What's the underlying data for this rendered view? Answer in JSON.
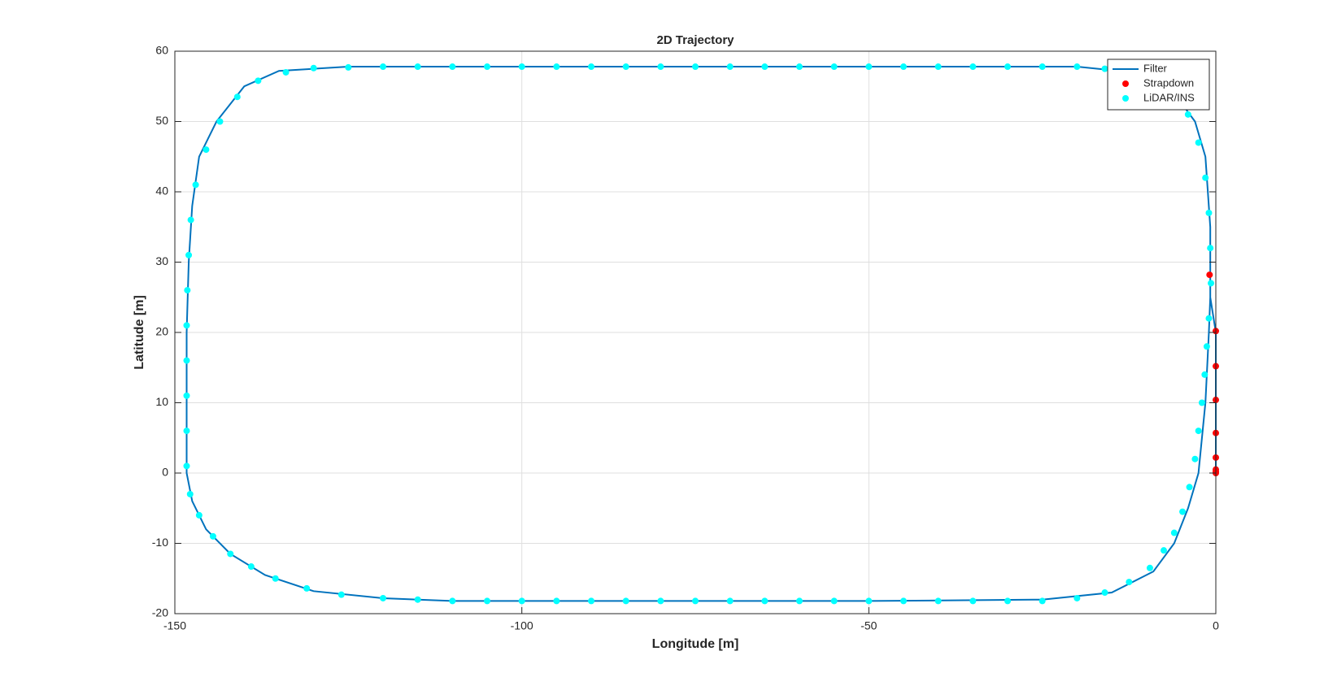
{
  "chart_data": {
    "type": "line",
    "title": "2D Trajectory",
    "x_label": "Longitude [m]",
    "y_label": "Latitude [m]",
    "xlim": [
      -150,
      0
    ],
    "ylim": [
      -20,
      60
    ],
    "xticks": [
      -150,
      -100,
      -50,
      0
    ],
    "yticks": [
      -20,
      -10,
      0,
      10,
      20,
      30,
      40,
      50,
      60
    ],
    "grid": true,
    "legend": "top-right",
    "series": [
      {
        "name": "Filter",
        "type": "line",
        "color": "#0072bd",
        "x": [
          0,
          0,
          0,
          -0.8,
          -0.8,
          -1.5,
          -3,
          -6,
          -12,
          -20,
          -50,
          -100,
          -125,
          -135,
          -140,
          -144,
          -146.5,
          -147.5,
          -148,
          -148.3,
          -148.3,
          -148.3,
          -147.5,
          -145.5,
          -142,
          -137,
          -130,
          -120,
          -110,
          -50,
          -25,
          -15,
          -9,
          -6,
          -4,
          -2.5,
          -1.5,
          -1,
          -0.8
        ],
        "y": [
          0,
          10,
          20,
          25,
          35,
          45,
          50,
          54,
          57,
          57.8,
          57.8,
          57.8,
          57.8,
          57.2,
          55,
          50,
          45,
          38,
          30,
          20,
          10,
          0,
          -4,
          -8,
          -11.5,
          -14.5,
          -16.8,
          -17.8,
          -18.2,
          -18.2,
          -18,
          -17,
          -14,
          -10,
          -5,
          0,
          10,
          20,
          25
        ]
      },
      {
        "name": "Strapdown",
        "type": "scatter",
        "color": "#ff0000",
        "x": [
          -0.9,
          0,
          0,
          0,
          0,
          0,
          0,
          0,
          0
        ],
        "y": [
          28.2,
          20.2,
          15.2,
          10.4,
          5.7,
          2.2,
          0.5,
          0.2,
          0
        ]
      },
      {
        "name": "LiDAR/INS",
        "type": "scatter",
        "color": "#00ffff",
        "x": [
          -1,
          -0.7,
          -0.8,
          -1,
          -1.5,
          -2.5,
          -4,
          -7,
          -11,
          -16,
          -20,
          -25,
          -30,
          -35,
          -40,
          -45,
          -50,
          -55,
          -60,
          -65,
          -70,
          -75,
          -80,
          -85,
          -90,
          -95,
          -100,
          -105,
          -110,
          -115,
          -120,
          -125,
          -130,
          -134,
          -138,
          -141,
          -143.5,
          -145.5,
          -147,
          -147.7,
          -148,
          -148.2,
          -148.3,
          -148.3,
          -148.3,
          -148.3,
          -148.3,
          -147.8,
          -146.5,
          -144.5,
          -142,
          -139,
          -135.5,
          -131,
          -126,
          -120,
          -115,
          -110,
          -105,
          -100,
          -95,
          -90,
          -85,
          -80,
          -75,
          -70,
          -65,
          -60,
          -55,
          -50,
          -45,
          -40,
          -35,
          -30,
          -25,
          -20,
          -16,
          -12.5,
          -9.5,
          -7.5,
          -6,
          -4.8,
          -3.8,
          -3,
          -2.5,
          -2,
          -1.6,
          -1.3
        ],
        "y": [
          22,
          27,
          32,
          37,
          42,
          47,
          51,
          54.5,
          56.5,
          57.5,
          57.8,
          57.8,
          57.8,
          57.8,
          57.8,
          57.8,
          57.8,
          57.8,
          57.8,
          57.8,
          57.8,
          57.8,
          57.8,
          57.8,
          57.8,
          57.8,
          57.8,
          57.8,
          57.8,
          57.8,
          57.8,
          57.7,
          57.6,
          57,
          55.8,
          53.5,
          50,
          46,
          41,
          36,
          31,
          26,
          21,
          16,
          11,
          6,
          1,
          -3,
          -6,
          -9,
          -11.5,
          -13.3,
          -15,
          -16.4,
          -17.3,
          -17.8,
          -18,
          -18.2,
          -18.2,
          -18.2,
          -18.2,
          -18.2,
          -18.2,
          -18.2,
          -18.2,
          -18.2,
          -18.2,
          -18.2,
          -18.2,
          -18.2,
          -18.2,
          -18.2,
          -18.2,
          -18.2,
          -18.2,
          -17.8,
          -17,
          -15.5,
          -13.5,
          -11,
          -8.5,
          -5.5,
          -2,
          2,
          6,
          10,
          14,
          18
        ]
      }
    ]
  }
}
